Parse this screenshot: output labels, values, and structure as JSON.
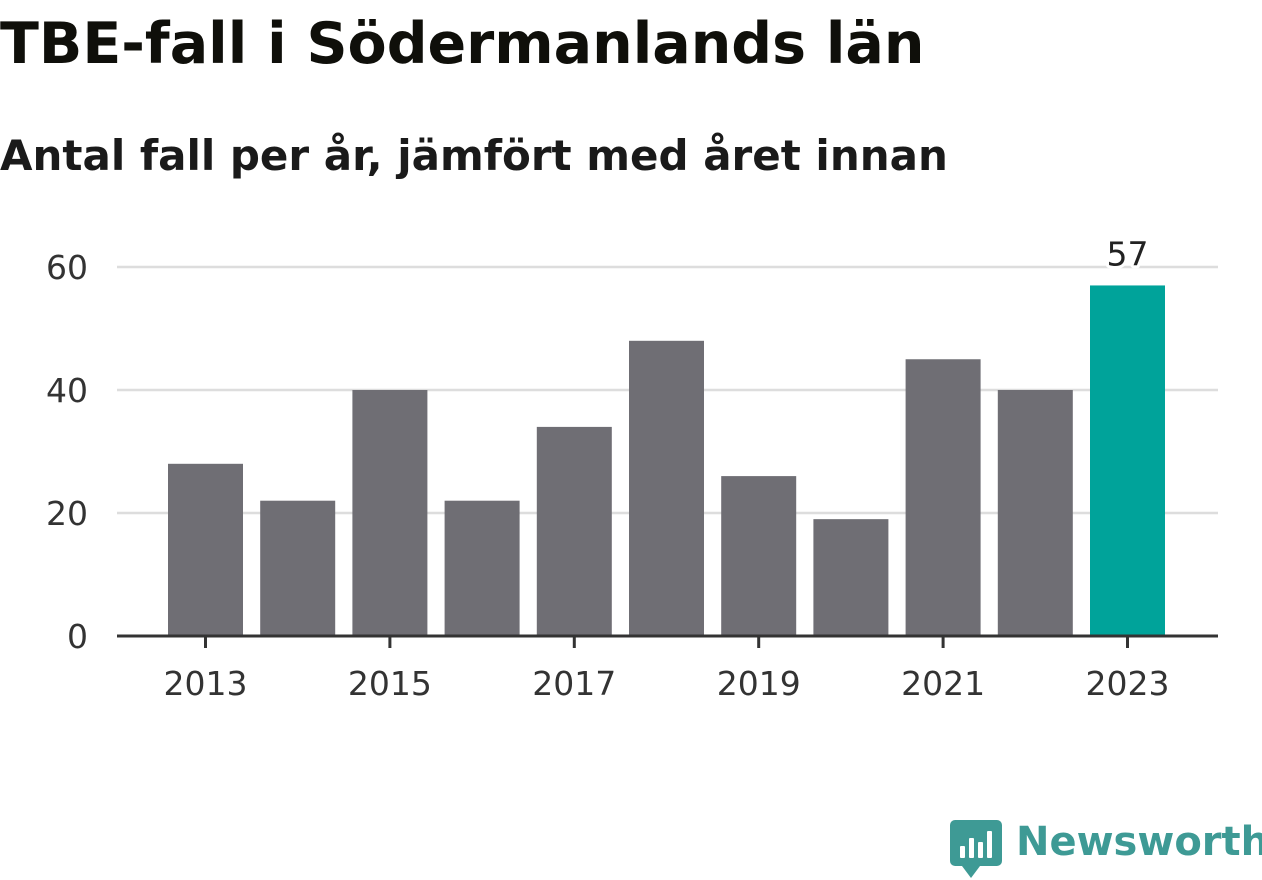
{
  "header": {
    "title": "TBE-fall i Södermanlands län",
    "subtitle": "Antal fall per år, jämfört med året innan"
  },
  "chart_data": {
    "type": "bar",
    "title": "TBE-fall i Södermanlands län",
    "subtitle": "Antal fall per år, jämfört med året innan",
    "categories": [
      "2013",
      "2014",
      "2015",
      "2016",
      "2017",
      "2018",
      "2019",
      "2020",
      "2021",
      "2022",
      "2023"
    ],
    "values": [
      28,
      22,
      40,
      22,
      34,
      48,
      26,
      19,
      45,
      40,
      57
    ],
    "x_tick_labels": [
      "2013",
      "2015",
      "2017",
      "2019",
      "2021",
      "2023"
    ],
    "y_ticks": [
      0,
      20,
      40,
      60
    ],
    "ylim": [
      0,
      60
    ],
    "xlabel": "",
    "ylabel": "",
    "grid": true,
    "legend": "none",
    "highlight_category": "2023",
    "annotation": "57",
    "colors": {
      "bar": "#6f6e74",
      "highlight": "#00a39a",
      "grid": "#dddddd",
      "axis": "#333333"
    }
  },
  "footer": {
    "brand_name": "Newsworthy",
    "brand_icon": "newsworthy-chart-bubble-icon",
    "brand_color": "#3e9a95"
  }
}
